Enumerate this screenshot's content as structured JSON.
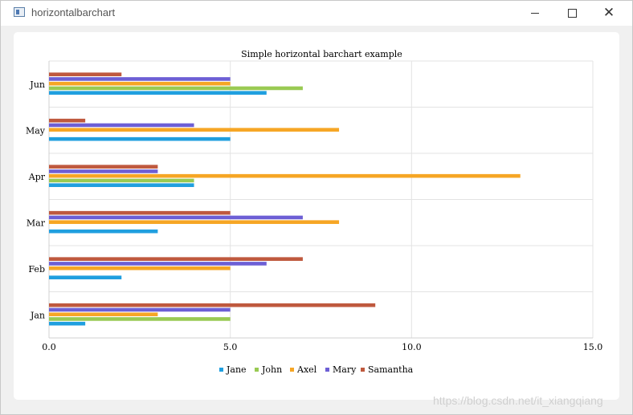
{
  "window": {
    "title": "horizontalbarchart"
  },
  "watermark": "https://blog.csdn.net/it_xiangqiang",
  "chart_data": {
    "type": "bar",
    "orientation": "horizontal",
    "title": "Simple horizontal barchart example",
    "categories": [
      "Jan",
      "Feb",
      "Mar",
      "Apr",
      "May",
      "Jun"
    ],
    "series": [
      {
        "name": "Jane",
        "color": "#209fdf",
        "values": [
          1,
          2,
          3,
          4,
          5,
          6
        ]
      },
      {
        "name": "John",
        "color": "#99ca53",
        "values": [
          5,
          0,
          0,
          4,
          0,
          7
        ]
      },
      {
        "name": "Axel",
        "color": "#f6a625",
        "values": [
          3,
          5,
          8,
          13,
          8,
          5
        ]
      },
      {
        "name": "Mary",
        "color": "#6d5fd5",
        "values": [
          5,
          6,
          7,
          3,
          4,
          5
        ]
      },
      {
        "name": "Samantha",
        "color": "#bf593e",
        "values": [
          9,
          7,
          5,
          3,
          1,
          2
        ]
      }
    ],
    "x_ticks": [
      "0.0",
      "5.0",
      "10.0",
      "15.0"
    ],
    "xlim": [
      0,
      15
    ],
    "grid": true,
    "legend": "bottom"
  }
}
